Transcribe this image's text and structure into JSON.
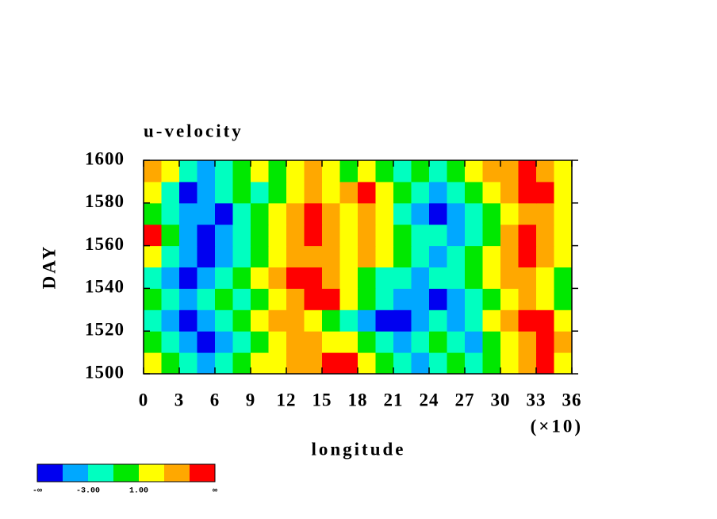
{
  "chart_data": {
    "type": "contour",
    "title": "u-velocity",
    "xlabel": "longitude",
    "ylabel": "DAY",
    "x_multiplier_label": "(×10)",
    "xlim": [
      0,
      36
    ],
    "ylim": [
      1500,
      1600
    ],
    "xticks": [
      0,
      3,
      6,
      9,
      12,
      15,
      18,
      21,
      24,
      27,
      30,
      33,
      36
    ],
    "yticks": [
      1500,
      1520,
      1540,
      1560,
      1580,
      1600
    ],
    "z": [
      [
        2,
        0,
        -2,
        -4,
        -2,
        0,
        1,
        2,
        3,
        4,
        6,
        6,
        2,
        0,
        -2,
        -4,
        -2,
        0,
        -2,
        0,
        2,
        3,
        6,
        2
      ],
      [
        0,
        -2,
        -4,
        -6,
        -4,
        -2,
        0,
        2,
        4,
        3,
        2,
        1,
        0,
        -2,
        -4,
        -2,
        0,
        -2,
        -4,
        0,
        2,
        4,
        6,
        4
      ],
      [
        -2,
        -4,
        -6,
        -4,
        -2,
        0,
        2,
        3,
        4,
        2,
        0,
        -2,
        -4,
        -6,
        -6,
        -4,
        -2,
        -4,
        -2,
        2,
        4,
        6,
        6,
        2
      ],
      [
        0,
        -2,
        -4,
        -2,
        0,
        -2,
        0,
        2,
        4,
        6,
        6,
        2,
        0,
        -2,
        -4,
        -4,
        -6,
        -4,
        -2,
        0,
        2,
        3,
        2,
        0
      ],
      [
        -2,
        -4,
        -6,
        -4,
        -2,
        0,
        2,
        3,
        6,
        6,
        4,
        2,
        0,
        -2,
        -2,
        -4,
        -2,
        -2,
        0,
        2,
        3,
        4,
        2,
        0
      ],
      [
        2,
        -2,
        -4,
        -6,
        -4,
        -2,
        0,
        2,
        3,
        4,
        3,
        2,
        4,
        2,
        0,
        -2,
        -4,
        -2,
        0,
        2,
        4,
        6,
        4,
        2
      ],
      [
        6,
        0,
        -4,
        -6,
        -4,
        -2,
        0,
        2,
        4,
        6,
        4,
        2,
        3,
        2,
        0,
        -2,
        -2,
        -4,
        -2,
        0,
        3,
        6,
        4,
        2
      ],
      [
        0,
        -2,
        -4,
        -4,
        -6,
        -2,
        0,
        2,
        4,
        6,
        3,
        2,
        3,
        2,
        -2,
        -4,
        -6,
        -4,
        -2,
        0,
        2,
        4,
        3,
        2
      ],
      [
        2,
        -2,
        -6,
        -4,
        -2,
        0,
        -2,
        0,
        2,
        3,
        2,
        4,
        6,
        2,
        0,
        -2,
        -4,
        -2,
        0,
        2,
        4,
        6,
        6,
        2
      ],
      [
        4,
        2,
        -2,
        -4,
        -2,
        0,
        2,
        0,
        2,
        3,
        2,
        0,
        2,
        0,
        -2,
        0,
        -2,
        0,
        2,
        3,
        4,
        6,
        4,
        2
      ]
    ],
    "colorbar": {
      "levels": [
        -5,
        -3,
        -1,
        1,
        3,
        5
      ],
      "colors": [
        "#0000f0",
        "#00a8ff",
        "#00ffc0",
        "#00e800",
        "#ffff00",
        "#ffa800",
        "#ff0000"
      ],
      "ticks": [
        {
          "value": -3,
          "label": "-3.00"
        },
        {
          "value": 1,
          "label": "1.00"
        }
      ],
      "low_label": "-∞",
      "high_label": "∞"
    }
  }
}
